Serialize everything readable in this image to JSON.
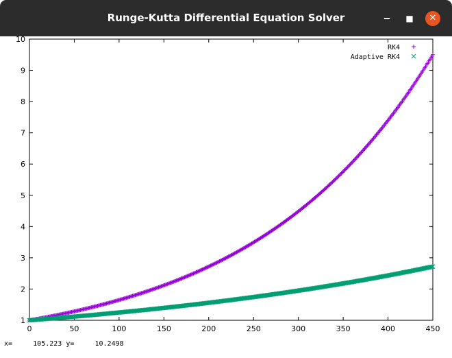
{
  "window": {
    "title": "Runge-Kutta Differential Equation Solver",
    "minimize_glyph": "‒",
    "maximize_glyph": "■",
    "close_glyph": "✕"
  },
  "status": {
    "x_label": "x=",
    "x_value": "105.223",
    "y_label": "y=",
    "y_value": "10.2498"
  },
  "chart_data": {
    "type": "scatter",
    "xlim": [
      0,
      450
    ],
    "ylim": [
      1,
      10
    ],
    "x_ticks": [
      0,
      50,
      100,
      150,
      200,
      250,
      300,
      350,
      400,
      450
    ],
    "y_ticks": [
      1,
      2,
      3,
      4,
      5,
      6,
      7,
      8,
      9,
      10
    ],
    "legend_position": "top-right",
    "series": [
      {
        "name": "RK4",
        "marker": "+",
        "color": "#9400d3",
        "x_start": 0,
        "x_end": 450,
        "y_start": 1.0,
        "y_end": 9.5,
        "growth": "exponential",
        "point_count": 450
      },
      {
        "name": "Adaptive RK4",
        "marker": "x",
        "color": "#009e73",
        "x_start": 0,
        "x_end": 450,
        "y_start": 1.0,
        "y_end": 2.72,
        "growth": "exponential",
        "point_count": 450
      }
    ]
  }
}
